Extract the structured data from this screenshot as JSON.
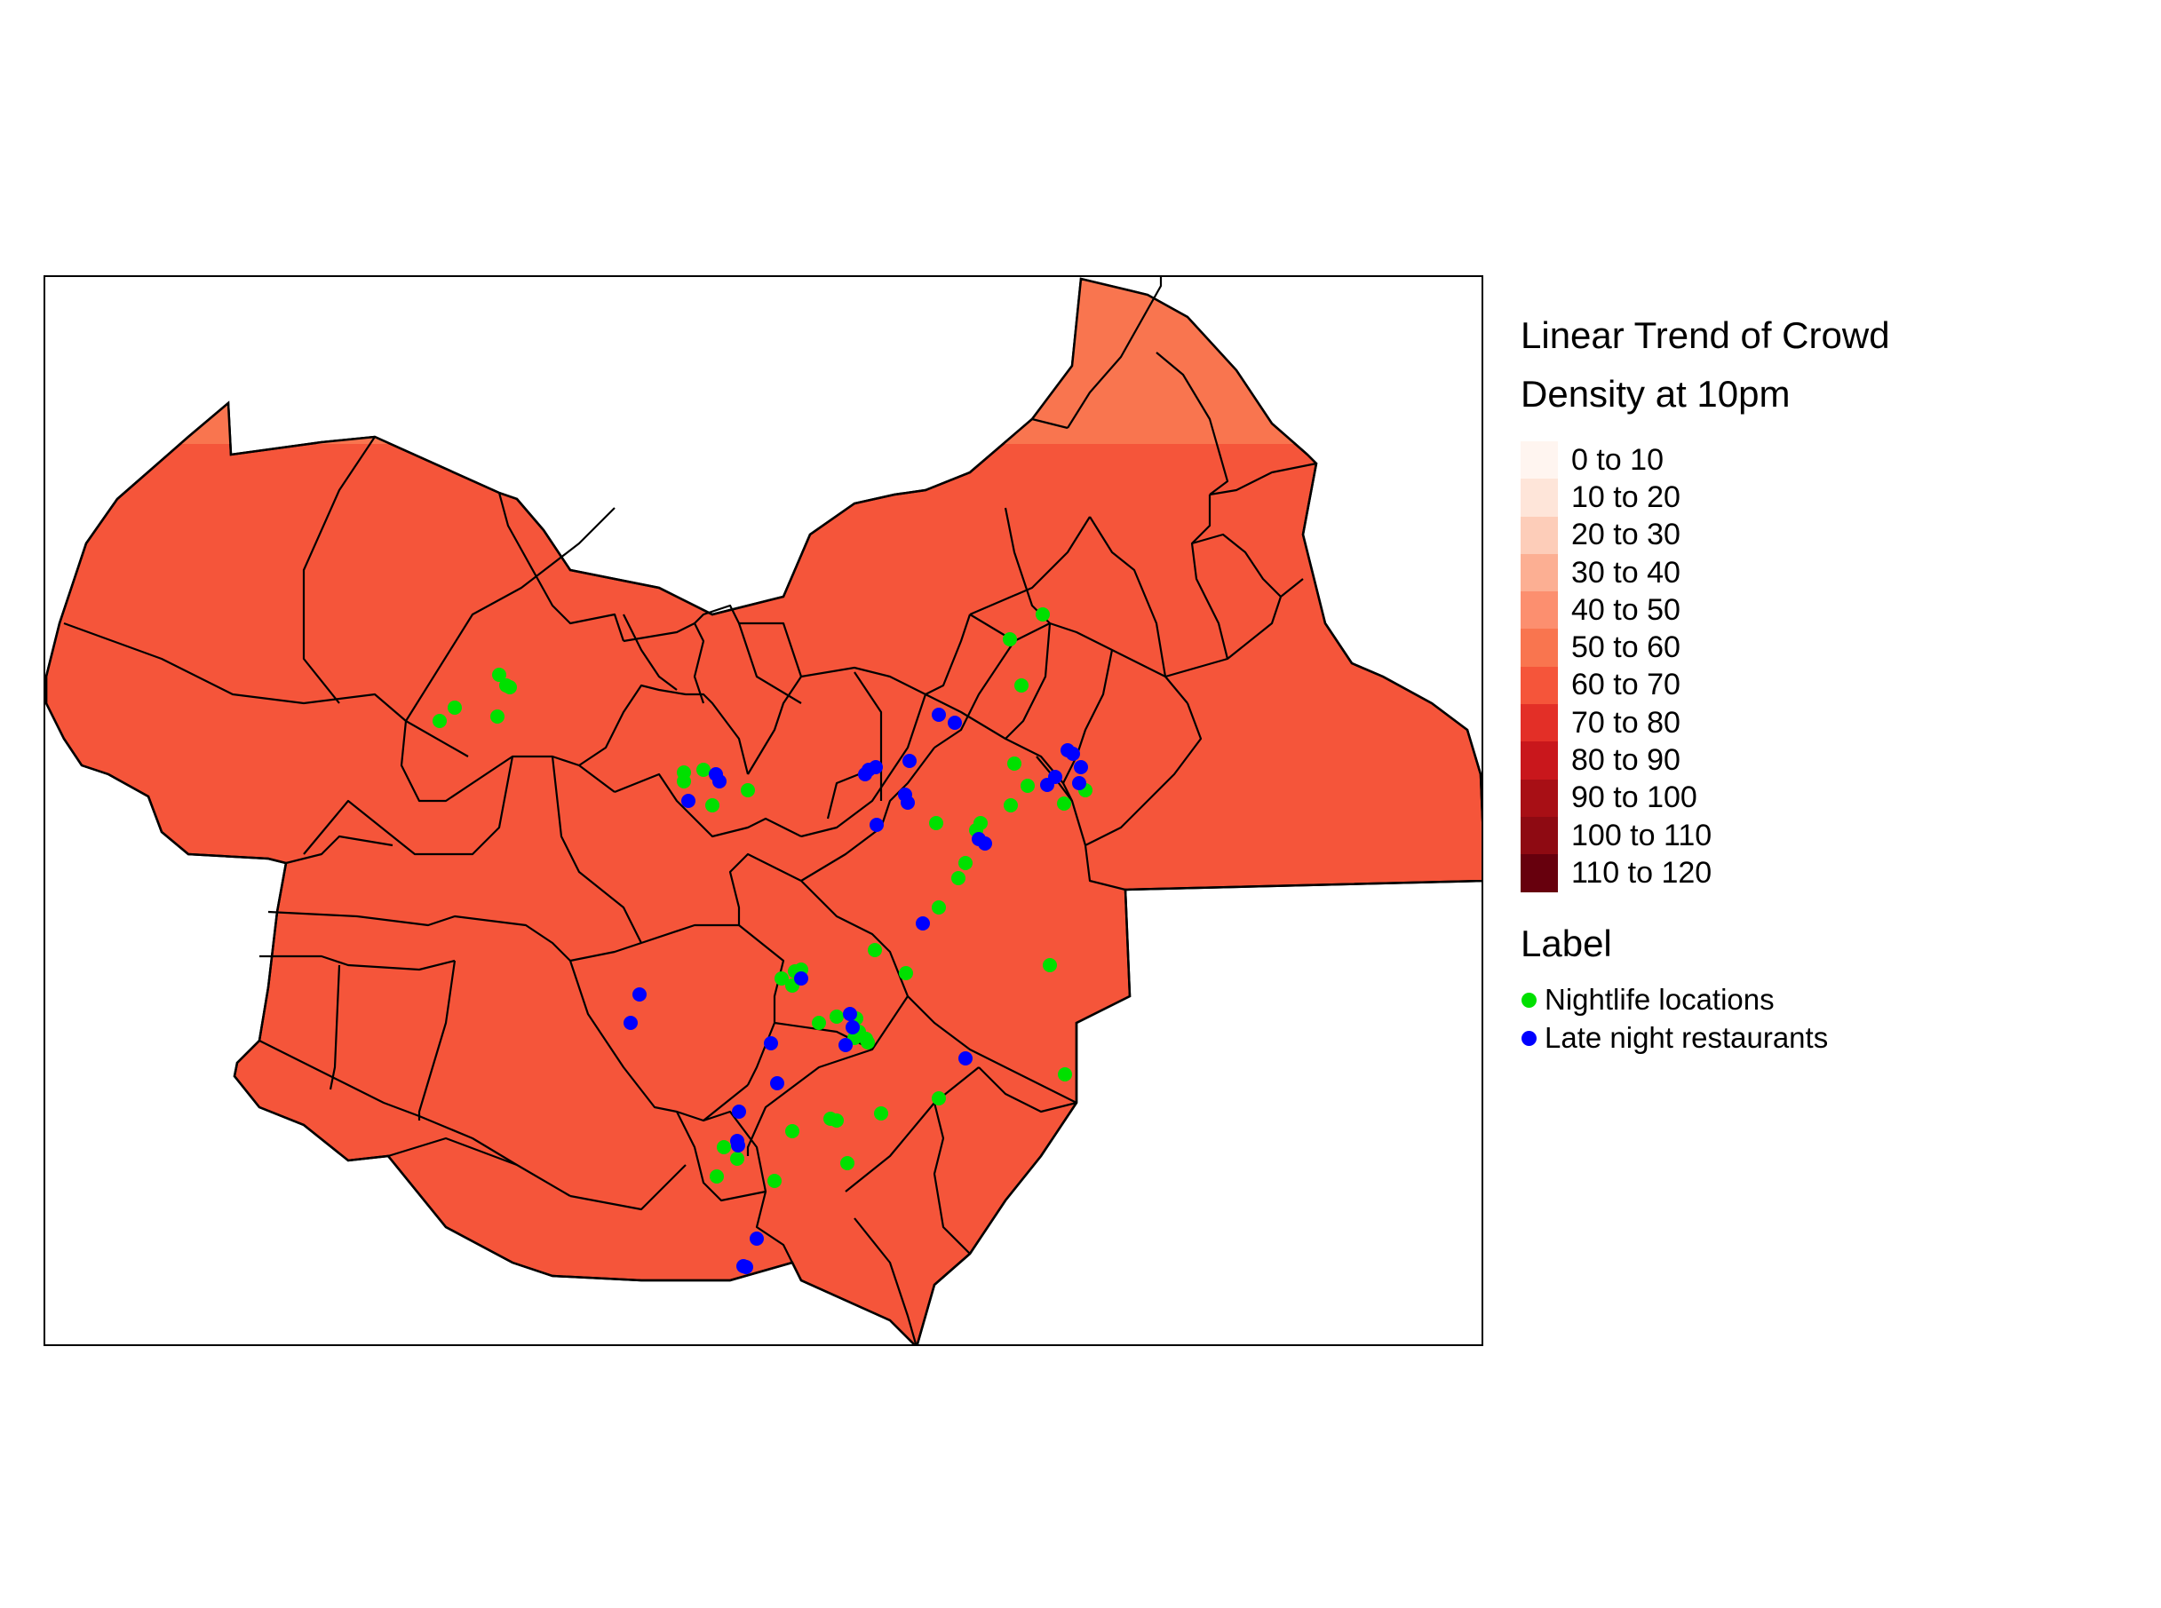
{
  "legend": {
    "title_line1": "Linear Trend of Crowd",
    "title_line2": "Density at 10pm",
    "ramp": [
      {
        "label": "0 to 10",
        "color": "#fff5f0"
      },
      {
        "label": "10 to 20",
        "color": "#fee5d9"
      },
      {
        "label": "20 to 30",
        "color": "#fdcdb9"
      },
      {
        "label": "30 to 40",
        "color": "#fcaf93"
      },
      {
        "label": "40 to 50",
        "color": "#fc8f6f"
      },
      {
        "label": "50 to 60",
        "color": "#f9754f"
      },
      {
        "label": "60 to 70",
        "color": "#f5553a"
      },
      {
        "label": "70 to 80",
        "color": "#e32f27"
      },
      {
        "label": "80 to 90",
        "color": "#c9171c"
      },
      {
        "label": "90 to 100",
        "color": "#a80f15"
      },
      {
        "label": "100 to 110",
        "color": "#8e0a12"
      },
      {
        "label": "110 to 120",
        "color": "#67000d"
      }
    ],
    "points_title": "Label",
    "points": [
      {
        "label": "Nightlife locations",
        "color": "#00e000"
      },
      {
        "label": "Late night restaurants",
        "color": "#0000ff"
      }
    ]
  },
  "map": {
    "fill_color": "#f5553a",
    "edge_fill_color": "#f9754f",
    "border_color": "#000000"
  }
}
